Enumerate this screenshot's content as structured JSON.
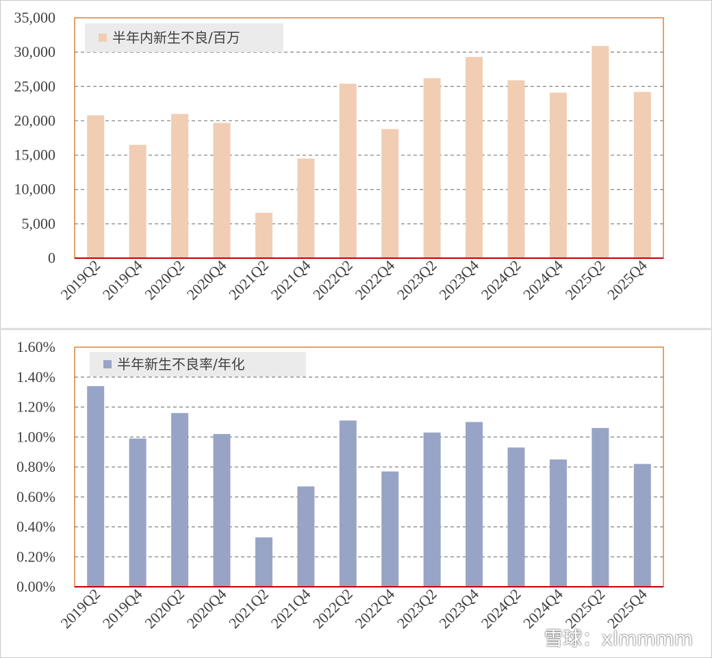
{
  "chart_data": [
    {
      "type": "bar",
      "categories": [
        "2019Q2",
        "2019Q4",
        "2020Q2",
        "2020Q4",
        "2021Q2",
        "2021Q4",
        "2022Q2",
        "2022Q4",
        "2023Q2",
        "2023Q4",
        "2024Q2",
        "2024Q4",
        "2025Q2",
        "2025Q4"
      ],
      "series": [
        {
          "name": "半年内新生不良/百万",
          "values": [
            20800,
            16500,
            21000,
            19700,
            6600,
            14500,
            25400,
            18800,
            26200,
            29300,
            25900,
            24100,
            30900,
            24200
          ],
          "color": "#f0cdb3"
        }
      ],
      "ylim": [
        0,
        35000
      ],
      "yticks": [
        "0",
        "5,000",
        "10,000",
        "15,000",
        "20,000",
        "25,000",
        "30,000",
        "35,000"
      ],
      "grid": true,
      "legend": "top-left"
    },
    {
      "type": "bar",
      "categories": [
        "2019Q2",
        "2019Q4",
        "2020Q2",
        "2020Q4",
        "2021Q2",
        "2021Q4",
        "2022Q2",
        "2022Q4",
        "2023Q2",
        "2023Q4",
        "2024Q2",
        "2024Q4",
        "2025Q2",
        "2025Q4"
      ],
      "series": [
        {
          "name": "半年新生不良率/年化",
          "values": [
            1.34,
            0.99,
            1.16,
            1.02,
            0.33,
            0.67,
            1.11,
            0.77,
            1.03,
            1.1,
            0.93,
            0.85,
            1.06,
            0.82
          ],
          "color": "#98a4c6"
        }
      ],
      "ylim": [
        0,
        1.6
      ],
      "yticks": [
        "0.00%",
        "0.20%",
        "0.40%",
        "0.60%",
        "0.80%",
        "1.00%",
        "1.20%",
        "1.40%",
        "1.60%"
      ],
      "grid": true,
      "legend": "top-left"
    }
  ],
  "colors": {
    "frame": "#d9823b",
    "axis": "#c00000",
    "grid": "#808080",
    "legend_bg": "#ebebeb"
  },
  "watermark": "雪球：xlmmmm"
}
